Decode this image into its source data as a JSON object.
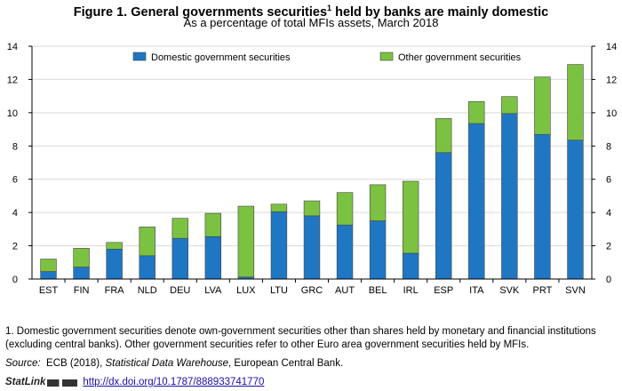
{
  "header": {
    "title": "Figure 1. General governments securities",
    "title_sup": "1",
    "title_rest": " held by banks are mainly domestic",
    "subtitle": "As a percentage of total MFIs assets, March 2018"
  },
  "chart_data": {
    "type": "bar",
    "stacked": true,
    "categories": [
      "EST",
      "FIN",
      "FRA",
      "NLD",
      "DEU",
      "LVA",
      "LUX",
      "LTU",
      "GRC",
      "AUT",
      "BEL",
      "IRL",
      "ESP",
      "ITA",
      "SVK",
      "PRT",
      "SVN"
    ],
    "series": [
      {
        "name": "Domestic government securities",
        "color": "#1f77c4",
        "values": [
          0.45,
          0.72,
          1.8,
          1.4,
          2.45,
          2.55,
          0.12,
          4.05,
          3.8,
          3.25,
          3.5,
          1.55,
          7.6,
          9.35,
          9.95,
          8.7,
          8.35
        ]
      },
      {
        "name": "Other government securities",
        "color": "#7cc242",
        "values": [
          0.75,
          1.13,
          0.4,
          1.73,
          1.2,
          1.4,
          4.26,
          0.45,
          0.9,
          1.95,
          2.17,
          4.33,
          2.05,
          1.32,
          1.02,
          3.45,
          4.55
        ]
      }
    ],
    "ylim": [
      0,
      14
    ],
    "yticks": [
      0,
      2,
      4,
      6,
      8,
      10,
      12,
      14
    ],
    "grid": true,
    "legend_position": "top"
  },
  "notes": {
    "footnote": "1. Domestic government securities denote own-government securities other than shares held by monetary and financial institutions (excluding central banks). Other government securities refer to other Euro area government securities held by MFIs.",
    "source_label": "Source:",
    "source_pre": "ECB (2018), ",
    "source_title": "Statistical Data Warehouse",
    "source_post": ",  European Central Bank.",
    "statlink_label": "StatLink",
    "statlink_url": "http://dx.doi.org/10.1787/888933741770"
  }
}
